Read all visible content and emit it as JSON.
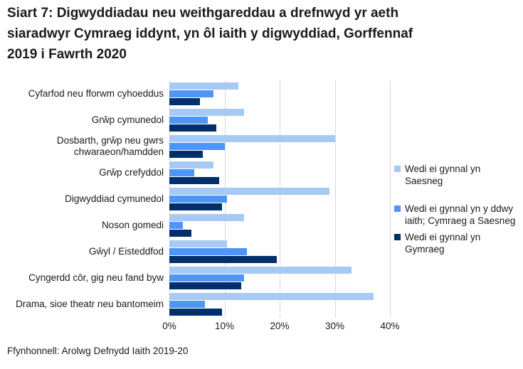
{
  "title": "Siart 7: Digwyddiadau neu weithgareddau a drefnwyd yr aeth siaradwyr Cymraeg iddynt, yn ôl iaith y digwyddiad, Gorffennaf 2019 i Fawrth 2020",
  "source": "Ffynhonnell: Arolwg Defnydd Iaith 2019-20",
  "colors": {
    "saesneg": "#A6C9F6",
    "dwyieithog": "#4E95F6",
    "cymraeg": "#002F6C",
    "gridline": "#D8D8D8",
    "text": "#1A1A1A"
  },
  "chart_data": {
    "type": "bar",
    "orientation": "horizontal",
    "title": "Siart 7: Digwyddiadau neu weithgareddau a drefnwyd yr aeth siaradwyr Cymraeg iddynt, yn ôl iaith y digwyddiad, Gorffennaf 2019 i Fawrth 2020",
    "categories": [
      "Cyfarfod neu fforwm cyhoeddus",
      "Grŵp cymunedol",
      "Dosbarth, grŵp neu gwrs chwaraeon/hamdden",
      "Grŵp crefyddol",
      "Digwyddiad cymunedol",
      "Noson gomedi",
      "Gŵyl / Eisteddfod",
      "Cyngerdd côr, gig neu fand byw",
      "Drama, sioe theatr neu bantomeim"
    ],
    "series": [
      {
        "name": "Wedi ei gynnal yn Saesneg",
        "color": "#A6C9F6",
        "values": [
          12.5,
          13.5,
          30,
          8,
          29,
          13.5,
          10.5,
          33,
          37
        ]
      },
      {
        "name": "Wedi ei gynnal yn y ddwy iaith; Cymraeg a Saesneg",
        "color": "#4E95F6",
        "values": [
          8,
          7,
          10,
          4.5,
          10.5,
          2.5,
          14,
          13.5,
          6.5
        ]
      },
      {
        "name": "Wedi ei gynnal yn Gymraeg",
        "color": "#002F6C",
        "values": [
          5.5,
          8.5,
          6,
          9,
          9.5,
          4,
          19.5,
          13,
          9.5
        ]
      }
    ],
    "x_ticks": [
      "0%",
      "10%",
      "20%",
      "30%",
      "40%"
    ],
    "xlim": [
      0,
      40
    ],
    "grid": true,
    "legend_position": "right"
  }
}
